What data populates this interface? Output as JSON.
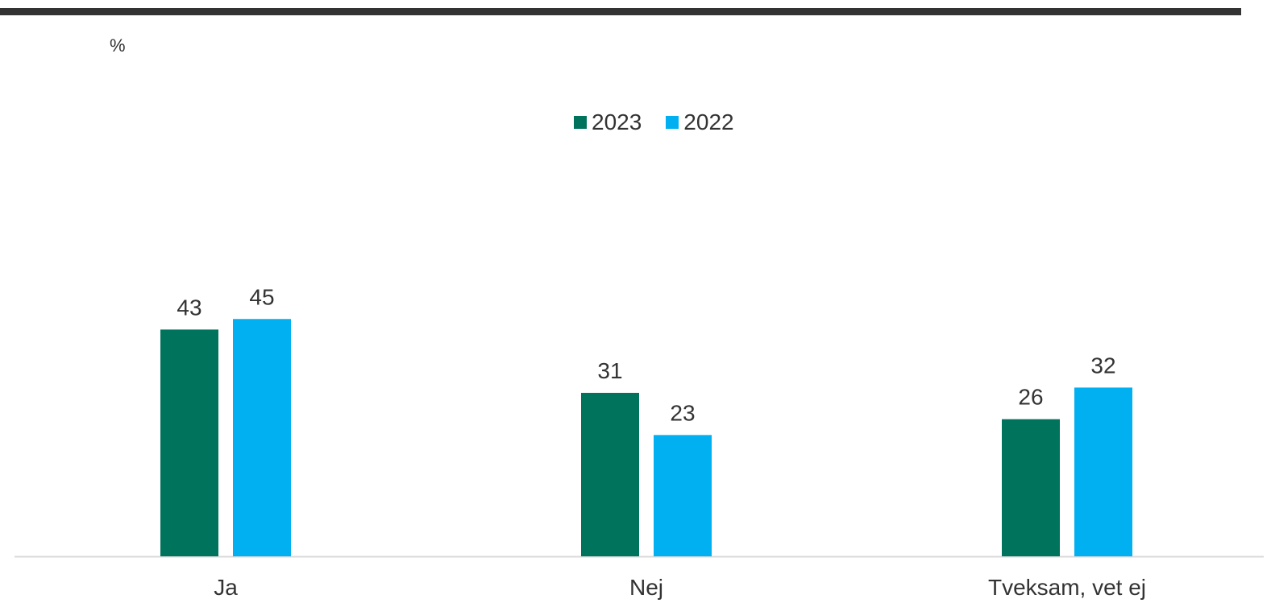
{
  "chart_data": {
    "type": "bar",
    "unit_label": "%",
    "categories": [
      "Ja",
      "Nej",
      "Tveksam, vet ej"
    ],
    "series": [
      {
        "name": "2023",
        "values": [
          43,
          31,
          26
        ],
        "color": "#00735c"
      },
      {
        "name": "2022",
        "values": [
          45,
          23,
          32
        ],
        "color": "#00b0f0"
      }
    ],
    "title": "",
    "xlabel": "",
    "ylabel": "",
    "ylim": [
      0,
      100
    ],
    "grid": false,
    "data_labels": true,
    "legend_position": "top-center"
  },
  "colors": {
    "top_rule": "#333333",
    "axis": "#d9d9d9",
    "text": "#333333"
  }
}
